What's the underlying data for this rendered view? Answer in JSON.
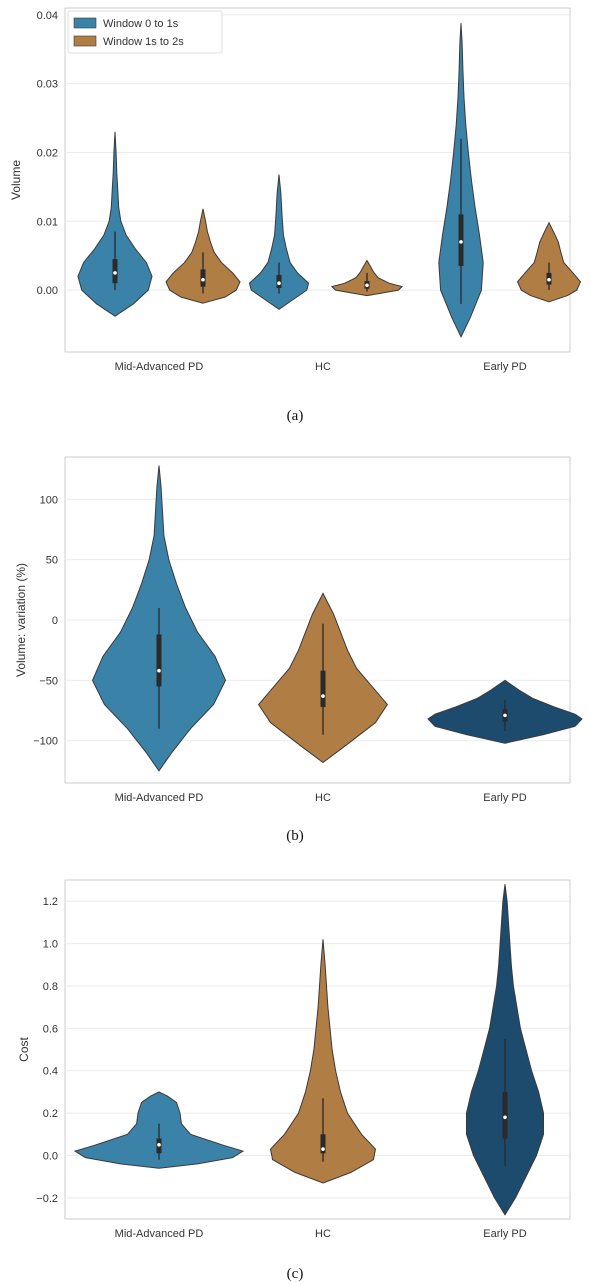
{
  "chart_data": [
    {
      "type": "violin",
      "caption": "(a)",
      "ylabel": "Volume",
      "ylim": [
        -0.009,
        0.041
      ],
      "yticks": [
        0.0,
        0.01,
        0.02,
        0.03,
        0.04
      ],
      "ytick_labels": [
        "0.00",
        "0.01",
        "0.02",
        "0.03",
        "0.04"
      ],
      "categories": [
        "Mid-Advanced PD",
        "HC",
        "Early PD"
      ],
      "grid": true,
      "legend": {
        "placement": "top-left"
      },
      "series": [
        {
          "name": "Window 0 to 1s",
          "color": "#3a82a8",
          "violins": [
            {
              "min": -0.0038,
              "max": 0.023,
              "q1": 0.001,
              "median": 0.0025,
              "q3": 0.0045,
              "whisker_low": 0.0,
              "whisker_high": 0.0085,
              "profile": [
                [
                  -0.0038,
                  0.0
                ],
                [
                  -0.002,
                  0.5
                ],
                [
                  0.0,
                  0.9
                ],
                [
                  0.002,
                  1.0
                ],
                [
                  0.004,
                  0.85
                ],
                [
                  0.006,
                  0.55
                ],
                [
                  0.008,
                  0.3
                ],
                [
                  0.01,
                  0.16
                ],
                [
                  0.012,
                  0.1
                ],
                [
                  0.014,
                  0.08
                ],
                [
                  0.017,
                  0.05
                ],
                [
                  0.02,
                  0.03
                ],
                [
                  0.023,
                  0.0
                ]
              ]
            },
            {
              "min": -0.0028,
              "max": 0.0168,
              "q1": 0.0003,
              "median": 0.001,
              "q3": 0.0022,
              "whisker_low": -0.0005,
              "whisker_high": 0.004,
              "profile": [
                [
                  -0.0028,
                  0.0
                ],
                [
                  -0.0015,
                  0.35
                ],
                [
                  0.0,
                  0.75
                ],
                [
                  0.001,
                  0.8
                ],
                [
                  0.0025,
                  0.5
                ],
                [
                  0.004,
                  0.3
                ],
                [
                  0.006,
                  0.2
                ],
                [
                  0.008,
                  0.12
                ],
                [
                  0.011,
                  0.08
                ],
                [
                  0.014,
                  0.05
                ],
                [
                  0.0168,
                  0.0
                ]
              ]
            },
            {
              "min": -0.0068,
              "max": 0.0388,
              "q1": 0.0035,
              "median": 0.007,
              "q3": 0.011,
              "whisker_low": -0.002,
              "whisker_high": 0.022,
              "profile": [
                [
                  -0.0068,
                  0.0
                ],
                [
                  -0.004,
                  0.25
                ],
                [
                  0.0,
                  0.55
                ],
                [
                  0.004,
                  0.6
                ],
                [
                  0.008,
                  0.5
                ],
                [
                  0.012,
                  0.38
                ],
                [
                  0.016,
                  0.28
                ],
                [
                  0.02,
                  0.2
                ],
                [
                  0.024,
                  0.13
                ],
                [
                  0.028,
                  0.08
                ],
                [
                  0.032,
                  0.05
                ],
                [
                  0.036,
                  0.03
                ],
                [
                  0.0388,
                  0.0
                ]
              ]
            }
          ]
        },
        {
          "name": "Window 1s to 2s",
          "color": "#b07d45",
          "violins": [
            {
              "min": -0.0019,
              "max": 0.0118,
              "q1": 0.0005,
              "median": 0.0015,
              "q3": 0.003,
              "whisker_low": -0.0005,
              "whisker_high": 0.0055,
              "profile": [
                [
                  -0.0019,
                  0.0
                ],
                [
                  -0.001,
                  0.6
                ],
                [
                  0.0,
                  0.9
                ],
                [
                  0.0012,
                  1.0
                ],
                [
                  0.0025,
                  0.8
                ],
                [
                  0.004,
                  0.5
                ],
                [
                  0.0055,
                  0.3
                ],
                [
                  0.007,
                  0.2
                ],
                [
                  0.0085,
                  0.12
                ],
                [
                  0.01,
                  0.07
                ],
                [
                  0.0118,
                  0.0
                ]
              ]
            },
            {
              "min": -0.0008,
              "max": 0.0043,
              "q1": 0.0002,
              "median": 0.0007,
              "q3": 0.0013,
              "whisker_low": -0.0002,
              "whisker_high": 0.0025,
              "profile": [
                [
                  -0.0008,
                  0.0
                ],
                [
                  -0.0004,
                  0.45
                ],
                [
                  0.0,
                  0.85
                ],
                [
                  0.0005,
                  0.95
                ],
                [
                  0.001,
                  0.6
                ],
                [
                  0.0018,
                  0.3
                ],
                [
                  0.0026,
                  0.18
                ],
                [
                  0.0034,
                  0.1
                ],
                [
                  0.0043,
                  0.0
                ]
              ]
            },
            {
              "min": -0.0017,
              "max": 0.0098,
              "q1": 0.0008,
              "median": 0.0015,
              "q3": 0.0025,
              "whisker_low": 0.0,
              "whisker_high": 0.004,
              "profile": [
                [
                  -0.0017,
                  0.0
                ],
                [
                  -0.0008,
                  0.5
                ],
                [
                  0.0,
                  0.75
                ],
                [
                  0.0012,
                  0.85
                ],
                [
                  0.0025,
                  0.65
                ],
                [
                  0.004,
                  0.4
                ],
                [
                  0.0055,
                  0.32
                ],
                [
                  0.007,
                  0.25
                ],
                [
                  0.0085,
                  0.12
                ],
                [
                  0.0098,
                  0.0
                ]
              ]
            }
          ]
        }
      ]
    },
    {
      "type": "violin",
      "caption": "(b)",
      "ylabel": "Volume: variation (%)",
      "ylim": [
        -135,
        135
      ],
      "yticks": [
        -100,
        -50,
        0,
        50,
        100
      ],
      "ytick_labels": [
        "−100",
        "−50",
        "0",
        "50",
        "100"
      ],
      "categories": [
        "Mid-Advanced PD",
        "HC",
        "Early PD"
      ],
      "grid": true,
      "violins": [
        {
          "color": "#3a82a8",
          "min": -125,
          "max": 128,
          "q1": -55,
          "median": -42,
          "q3": -12,
          "whisker_low": -90,
          "whisker_high": 10,
          "profile": [
            [
              -125,
              0.0
            ],
            [
              -110,
              0.18
            ],
            [
              -90,
              0.45
            ],
            [
              -70,
              0.78
            ],
            [
              -50,
              0.95
            ],
            [
              -30,
              0.8
            ],
            [
              -10,
              0.55
            ],
            [
              10,
              0.38
            ],
            [
              30,
              0.25
            ],
            [
              50,
              0.14
            ],
            [
              70,
              0.07
            ],
            [
              90,
              0.05
            ],
            [
              110,
              0.03
            ],
            [
              128,
              0.0
            ]
          ]
        },
        {
          "color": "#b07d45",
          "min": -118,
          "max": 22,
          "q1": -72,
          "median": -63,
          "q3": -42,
          "whisker_low": -95,
          "whisker_high": -3,
          "profile": [
            [
              -118,
              0.0
            ],
            [
              -105,
              0.3
            ],
            [
              -85,
              0.75
            ],
            [
              -70,
              0.92
            ],
            [
              -55,
              0.7
            ],
            [
              -40,
              0.48
            ],
            [
              -25,
              0.35
            ],
            [
              -10,
              0.25
            ],
            [
              5,
              0.15
            ],
            [
              22,
              0.0
            ]
          ]
        },
        {
          "color": "#1d4b6e",
          "min": -102,
          "max": -50,
          "q1": -84,
          "median": -79,
          "q3": -74,
          "whisker_low": -92,
          "whisker_high": -66,
          "profile": [
            [
              -102,
              0.0
            ],
            [
              -95,
              0.55
            ],
            [
              -88,
              1.0
            ],
            [
              -82,
              1.1
            ],
            [
              -78,
              1.0
            ],
            [
              -72,
              0.7
            ],
            [
              -65,
              0.4
            ],
            [
              -58,
              0.2
            ],
            [
              -50,
              0.0
            ]
          ]
        }
      ]
    },
    {
      "type": "violin",
      "caption": "(c)",
      "ylabel": "Cost",
      "ylim": [
        -0.3,
        1.3
      ],
      "yticks": [
        -0.2,
        0.0,
        0.2,
        0.4,
        0.6,
        0.8,
        1.0,
        1.2
      ],
      "ytick_labels": [
        "−0.2",
        "0.0",
        "0.2",
        "0.4",
        "0.6",
        "0.8",
        "1.0",
        "1.2"
      ],
      "categories": [
        "Mid-Advanced PD",
        "HC",
        "Early PD"
      ],
      "grid": true,
      "violins": [
        {
          "color": "#3a82a8",
          "min": -0.06,
          "max": 0.3,
          "q1": 0.01,
          "median": 0.05,
          "q3": 0.08,
          "whisker_low": -0.02,
          "whisker_high": 0.15,
          "profile": [
            [
              -0.06,
              0.0
            ],
            [
              -0.04,
              0.55
            ],
            [
              -0.01,
              1.05
            ],
            [
              0.02,
              1.2
            ],
            [
              0.05,
              0.9
            ],
            [
              0.1,
              0.45
            ],
            [
              0.15,
              0.32
            ],
            [
              0.2,
              0.3
            ],
            [
              0.25,
              0.25
            ],
            [
              0.28,
              0.12
            ],
            [
              0.3,
              0.0
            ]
          ]
        },
        {
          "color": "#b07d45",
          "min": -0.13,
          "max": 1.02,
          "q1": 0.01,
          "median": 0.03,
          "q3": 0.1,
          "whisker_low": -0.03,
          "whisker_high": 0.27,
          "profile": [
            [
              -0.13,
              0.0
            ],
            [
              -0.08,
              0.4
            ],
            [
              -0.02,
              0.72
            ],
            [
              0.03,
              0.75
            ],
            [
              0.1,
              0.55
            ],
            [
              0.2,
              0.35
            ],
            [
              0.3,
              0.25
            ],
            [
              0.4,
              0.18
            ],
            [
              0.5,
              0.13
            ],
            [
              0.6,
              0.1
            ],
            [
              0.7,
              0.07
            ],
            [
              0.8,
              0.05
            ],
            [
              0.9,
              0.03
            ],
            [
              1.02,
              0.0
            ]
          ]
        },
        {
          "color": "#1d4b6e",
          "min": -0.28,
          "max": 1.28,
          "q1": 0.08,
          "median": 0.18,
          "q3": 0.3,
          "whisker_low": -0.05,
          "whisker_high": 0.55,
          "profile": [
            [
              -0.28,
              0.0
            ],
            [
              -0.2,
              0.15
            ],
            [
              -0.1,
              0.3
            ],
            [
              0.0,
              0.45
            ],
            [
              0.1,
              0.55
            ],
            [
              0.2,
              0.55
            ],
            [
              0.3,
              0.48
            ],
            [
              0.4,
              0.38
            ],
            [
              0.5,
              0.3
            ],
            [
              0.6,
              0.22
            ],
            [
              0.7,
              0.17
            ],
            [
              0.8,
              0.12
            ],
            [
              0.9,
              0.09
            ],
            [
              1.0,
              0.07
            ],
            [
              1.1,
              0.05
            ],
            [
              1.2,
              0.03
            ],
            [
              1.28,
              0.0
            ]
          ]
        }
      ]
    }
  ]
}
